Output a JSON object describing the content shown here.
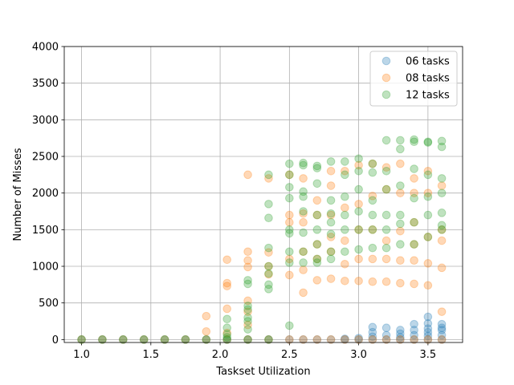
{
  "chart_data": {
    "type": "scatter",
    "xlabel": "Taskset Utilization",
    "ylabel": "Number of Misses",
    "xlim": [
      0.875,
      3.75
    ],
    "ylim": [
      -40,
      4000
    ],
    "xticks": [
      1.0,
      1.5,
      2.0,
      2.5,
      3.0,
      3.5
    ],
    "xtick_labels": [
      "1.0",
      "1.5",
      "2.0",
      "2.5",
      "3.0",
      "3.5"
    ],
    "yticks": [
      0,
      500,
      1000,
      1500,
      2000,
      2500,
      3000,
      3500,
      4000
    ],
    "ytick_labels": [
      "0",
      "500",
      "1000",
      "1500",
      "2000",
      "2500",
      "3000",
      "3500",
      "4000"
    ],
    "grid": true,
    "legend_position": "top-right",
    "series": [
      {
        "name": "06 tasks",
        "color": "#1f77b4",
        "points": [
          [
            1.0,
            0
          ],
          [
            1.15,
            0
          ],
          [
            1.3,
            0
          ],
          [
            1.45,
            0
          ],
          [
            1.6,
            0
          ],
          [
            1.75,
            0
          ],
          [
            1.9,
            0
          ],
          [
            2.05,
            0
          ],
          [
            2.2,
            0
          ],
          [
            2.35,
            0
          ],
          [
            2.5,
            0
          ],
          [
            2.6,
            0
          ],
          [
            2.7,
            0
          ],
          [
            2.8,
            0
          ],
          [
            2.9,
            0
          ],
          [
            2.9,
            10
          ],
          [
            3.0,
            0
          ],
          [
            3.0,
            20
          ],
          [
            3.1,
            0
          ],
          [
            3.1,
            40
          ],
          [
            3.1,
            100
          ],
          [
            3.1,
            170
          ],
          [
            3.2,
            0
          ],
          [
            3.2,
            60
          ],
          [
            3.2,
            160
          ],
          [
            3.3,
            0
          ],
          [
            3.3,
            30
          ],
          [
            3.3,
            80
          ],
          [
            3.3,
            130
          ],
          [
            3.4,
            0
          ],
          [
            3.4,
            60
          ],
          [
            3.4,
            130
          ],
          [
            3.4,
            210
          ],
          [
            3.5,
            0
          ],
          [
            3.5,
            50
          ],
          [
            3.5,
            100
          ],
          [
            3.5,
            150
          ],
          [
            3.5,
            220
          ],
          [
            3.5,
            310
          ],
          [
            3.6,
            0
          ],
          [
            3.6,
            60
          ],
          [
            3.6,
            130
          ],
          [
            3.6,
            160
          ],
          [
            3.6,
            210
          ]
        ]
      },
      {
        "name": "08 tasks",
        "color": "#ff7f0e",
        "points": [
          [
            1.0,
            0
          ],
          [
            1.15,
            0
          ],
          [
            1.3,
            0
          ],
          [
            1.45,
            0
          ],
          [
            1.6,
            0
          ],
          [
            1.75,
            0
          ],
          [
            1.9,
            0
          ],
          [
            1.9,
            110
          ],
          [
            1.9,
            320
          ],
          [
            2.05,
            0
          ],
          [
            2.05,
            90
          ],
          [
            2.05,
            420
          ],
          [
            2.05,
            730
          ],
          [
            2.05,
            770
          ],
          [
            2.05,
            1090
          ],
          [
            2.2,
            0
          ],
          [
            2.2,
            200
          ],
          [
            2.2,
            380
          ],
          [
            2.2,
            530
          ],
          [
            2.2,
            990
          ],
          [
            2.2,
            1080
          ],
          [
            2.2,
            1200
          ],
          [
            2.2,
            2250
          ],
          [
            2.35,
            0
          ],
          [
            2.35,
            890
          ],
          [
            2.35,
            1000
          ],
          [
            2.35,
            1190
          ],
          [
            2.35,
            2200
          ],
          [
            2.5,
            0
          ],
          [
            2.5,
            880
          ],
          [
            2.5,
            1100
          ],
          [
            2.5,
            1600
          ],
          [
            2.5,
            1700
          ],
          [
            2.5,
            2250
          ],
          [
            2.6,
            0
          ],
          [
            2.6,
            640
          ],
          [
            2.6,
            950
          ],
          [
            2.6,
            1200
          ],
          [
            2.6,
            1600
          ],
          [
            2.6,
            1720
          ],
          [
            2.6,
            2200
          ],
          [
            2.7,
            0
          ],
          [
            2.7,
            810
          ],
          [
            2.7,
            1100
          ],
          [
            2.7,
            1300
          ],
          [
            2.7,
            1700
          ],
          [
            2.7,
            1900
          ],
          [
            2.8,
            0
          ],
          [
            2.8,
            830
          ],
          [
            2.8,
            1200
          ],
          [
            2.8,
            1400
          ],
          [
            2.8,
            1700
          ],
          [
            2.8,
            2100
          ],
          [
            2.8,
            2300
          ],
          [
            2.9,
            0
          ],
          [
            2.9,
            800
          ],
          [
            2.9,
            1030
          ],
          [
            2.9,
            1350
          ],
          [
            2.9,
            1800
          ],
          [
            2.9,
            2300
          ],
          [
            3.0,
            0
          ],
          [
            3.0,
            800
          ],
          [
            3.0,
            1100
          ],
          [
            3.0,
            1500
          ],
          [
            3.0,
            1850
          ],
          [
            3.0,
            2380
          ],
          [
            3.1,
            0
          ],
          [
            3.1,
            790
          ],
          [
            3.1,
            1100
          ],
          [
            3.1,
            1500
          ],
          [
            3.1,
            1960
          ],
          [
            3.1,
            2400
          ],
          [
            3.2,
            0
          ],
          [
            3.2,
            790
          ],
          [
            3.2,
            1100
          ],
          [
            3.2,
            1350
          ],
          [
            3.2,
            2050
          ],
          [
            3.2,
            2350
          ],
          [
            3.3,
            0
          ],
          [
            3.3,
            770
          ],
          [
            3.3,
            1080
          ],
          [
            3.3,
            1480
          ],
          [
            3.3,
            2000
          ],
          [
            3.3,
            2400
          ],
          [
            3.4,
            0
          ],
          [
            3.4,
            760
          ],
          [
            3.4,
            1080
          ],
          [
            3.4,
            1300
          ],
          [
            3.4,
            1600
          ],
          [
            3.4,
            2000
          ],
          [
            3.4,
            2200
          ],
          [
            3.5,
            0
          ],
          [
            3.5,
            740
          ],
          [
            3.5,
            1040
          ],
          [
            3.5,
            1400
          ],
          [
            3.5,
            2000
          ],
          [
            3.5,
            2300
          ],
          [
            3.6,
            0
          ],
          [
            3.6,
            380
          ],
          [
            3.6,
            980
          ],
          [
            3.6,
            1350
          ],
          [
            3.6,
            1500
          ],
          [
            3.6,
            2100
          ]
        ]
      },
      {
        "name": "12 tasks",
        "color": "#2ca02c",
        "points": [
          [
            1.0,
            0
          ],
          [
            1.15,
            0
          ],
          [
            1.3,
            0
          ],
          [
            1.45,
            0
          ],
          [
            1.6,
            0
          ],
          [
            1.75,
            0
          ],
          [
            1.9,
            0
          ],
          [
            2.05,
            0
          ],
          [
            2.05,
            30
          ],
          [
            2.05,
            70
          ],
          [
            2.05,
            160
          ],
          [
            2.05,
            280
          ],
          [
            2.2,
            0
          ],
          [
            2.2,
            140
          ],
          [
            2.2,
            250
          ],
          [
            2.2,
            300
          ],
          [
            2.2,
            410
          ],
          [
            2.2,
            460
          ],
          [
            2.2,
            760
          ],
          [
            2.2,
            810
          ],
          [
            2.35,
            0
          ],
          [
            2.35,
            690
          ],
          [
            2.35,
            750
          ],
          [
            2.35,
            900
          ],
          [
            2.35,
            1000
          ],
          [
            2.35,
            1250
          ],
          [
            2.35,
            1660
          ],
          [
            2.35,
            1850
          ],
          [
            2.35,
            2250
          ],
          [
            2.5,
            190
          ],
          [
            2.5,
            1050
          ],
          [
            2.5,
            1200
          ],
          [
            2.5,
            1450
          ],
          [
            2.5,
            1500
          ],
          [
            2.5,
            1930
          ],
          [
            2.5,
            2080
          ],
          [
            2.5,
            2250
          ],
          [
            2.5,
            2400
          ],
          [
            2.6,
            1050
          ],
          [
            2.6,
            1200
          ],
          [
            2.6,
            1460
          ],
          [
            2.6,
            1750
          ],
          [
            2.6,
            1950
          ],
          [
            2.6,
            2020
          ],
          [
            2.6,
            2380
          ],
          [
            2.6,
            2410
          ],
          [
            2.7,
            1050
          ],
          [
            2.7,
            1100
          ],
          [
            2.7,
            1300
          ],
          [
            2.7,
            1500
          ],
          [
            2.7,
            1700
          ],
          [
            2.7,
            2130
          ],
          [
            2.7,
            2340
          ],
          [
            2.7,
            2370
          ],
          [
            2.8,
            1100
          ],
          [
            2.8,
            1200
          ],
          [
            2.8,
            1440
          ],
          [
            2.8,
            1600
          ],
          [
            2.8,
            1720
          ],
          [
            2.8,
            1900
          ],
          [
            2.8,
            2430
          ],
          [
            2.9,
            1200
          ],
          [
            2.9,
            1500
          ],
          [
            2.9,
            1700
          ],
          [
            2.9,
            1950
          ],
          [
            2.9,
            2250
          ],
          [
            2.9,
            2430
          ],
          [
            3.0,
            1230
          ],
          [
            3.0,
            1500
          ],
          [
            3.0,
            1750
          ],
          [
            3.0,
            2050
          ],
          [
            3.0,
            2300
          ],
          [
            3.0,
            2470
          ],
          [
            3.1,
            1250
          ],
          [
            3.1,
            1500
          ],
          [
            3.1,
            1700
          ],
          [
            3.1,
            1900
          ],
          [
            3.1,
            2280
          ],
          [
            3.1,
            2400
          ],
          [
            3.2,
            1250
          ],
          [
            3.2,
            1500
          ],
          [
            3.2,
            1700
          ],
          [
            3.2,
            2050
          ],
          [
            3.2,
            2300
          ],
          [
            3.2,
            2720
          ],
          [
            3.3,
            1300
          ],
          [
            3.3,
            1580
          ],
          [
            3.3,
            1700
          ],
          [
            3.3,
            2100
          ],
          [
            3.3,
            2600
          ],
          [
            3.3,
            2720
          ],
          [
            3.4,
            1300
          ],
          [
            3.4,
            1600
          ],
          [
            3.4,
            1930
          ],
          [
            3.4,
            2330
          ],
          [
            3.4,
            2700
          ],
          [
            3.4,
            2730
          ],
          [
            3.5,
            1400
          ],
          [
            3.5,
            1700
          ],
          [
            3.5,
            1950
          ],
          [
            3.5,
            2250
          ],
          [
            3.5,
            2690
          ],
          [
            3.5,
            2700
          ],
          [
            3.6,
            1500
          ],
          [
            3.6,
            1560
          ],
          [
            3.6,
            1730
          ],
          [
            3.6,
            2000
          ],
          [
            3.6,
            2200
          ],
          [
            3.6,
            2630
          ],
          [
            3.6,
            2710
          ]
        ]
      }
    ]
  }
}
